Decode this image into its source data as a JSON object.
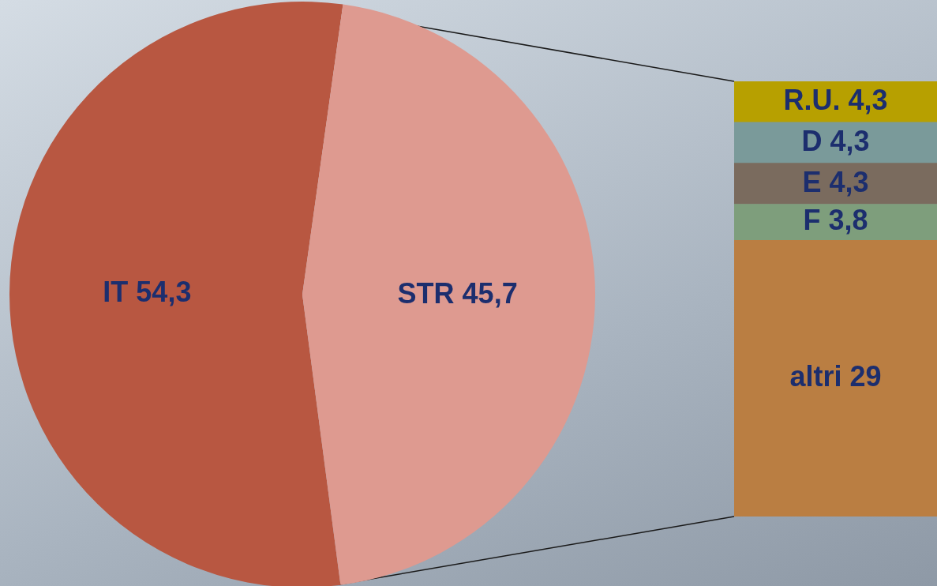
{
  "chart_data": [
    {
      "type": "pie",
      "categories": [
        "IT",
        "STR"
      ],
      "values": [
        54.3,
        45.7
      ],
      "colors": [
        "#b85741",
        "#de9a90"
      ],
      "value_labels": [
        "54,3",
        "45,7"
      ],
      "legend": false
    },
    {
      "type": "bar",
      "stacked": true,
      "categories": [
        null
      ],
      "tick_labels": false,
      "legend": false,
      "series": [
        {
          "name": "altri",
          "color": "#ba7e42",
          "values": [
            29
          ],
          "value_labels": [
            "29"
          ]
        },
        {
          "name": "F",
          "color": "#7e9e7c",
          "values": [
            3.8
          ],
          "value_labels": [
            "3,8"
          ]
        },
        {
          "name": "E",
          "color": "#7a6b5e",
          "values": [
            4.3
          ],
          "value_labels": [
            "4,3"
          ]
        },
        {
          "name": "D",
          "color": "#7a9a9a",
          "values": [
            4.3
          ],
          "value_labels": [
            "4,3"
          ]
        },
        {
          "name": "R.U.",
          "color": "#b7a000",
          "values": [
            4.3
          ],
          "value_labels": [
            "4,3"
          ]
        }
      ]
    }
  ]
}
